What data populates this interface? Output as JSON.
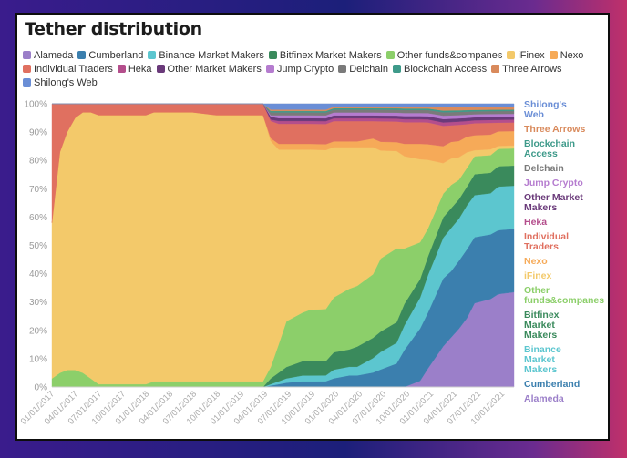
{
  "title": "Tether distribution",
  "chart_data": {
    "type": "area",
    "stacked": true,
    "normalized": true,
    "title": "Tether distribution",
    "ylim": [
      0,
      100
    ],
    "y_tick_labels": [
      "0%",
      "10%",
      "20%",
      "30%",
      "40%",
      "50%",
      "60%",
      "70%",
      "80%",
      "90%",
      "100%"
    ],
    "x_tick_labels": [
      "01/01/2017",
      "04/01/2017",
      "07/01/2017",
      "10/01/2017",
      "01/01/2018",
      "04/01/2018",
      "07/01/2018",
      "10/01/2018",
      "01/01/2019",
      "04/01/2019",
      "07/01/2019",
      "10/01/2019",
      "01/01/2020",
      "04/01/2020",
      "07/01/2020",
      "10/01/2020",
      "01/01/2021",
      "04/01/2021",
      "07/01/2021",
      "10/01/2021"
    ],
    "x_dates": [
      "2017-01-01",
      "2017-02-01",
      "2017-03-01",
      "2017-04-01",
      "2017-05-01",
      "2017-06-01",
      "2017-07-01",
      "2017-10-01",
      "2018-01-01",
      "2018-02-01",
      "2018-04-01",
      "2018-07-01",
      "2018-10-01",
      "2019-01-01",
      "2019-03-01",
      "2019-04-01",
      "2019-05-01",
      "2019-06-01",
      "2019-07-01",
      "2019-09-01",
      "2019-10-01",
      "2019-12-01",
      "2020-01-01",
      "2020-03-01",
      "2020-04-01",
      "2020-06-01",
      "2020-07-01",
      "2020-09-01",
      "2020-10-01",
      "2020-12-01",
      "2021-01-01",
      "2021-03-01",
      "2021-04-01",
      "2021-05-01",
      "2021-06-01",
      "2021-07-01",
      "2021-09-01",
      "2021-10-01",
      "2021-12-01"
    ],
    "series": [
      {
        "name": "Alameda",
        "color": "#9b7fc9",
        "values": [
          0,
          0,
          0,
          0,
          0,
          0,
          0,
          0,
          0,
          0,
          0,
          0,
          0,
          0,
          0,
          0,
          0,
          0,
          0,
          0,
          0,
          0,
          0,
          0,
          0,
          0,
          0,
          0,
          0,
          2,
          6,
          12,
          15,
          18,
          22,
          28,
          30,
          32,
          33
        ]
      },
      {
        "name": "Cumberland",
        "color": "#3b7fae",
        "values": [
          0,
          0,
          0,
          0,
          0,
          0,
          0,
          0,
          0,
          0,
          0,
          0,
          0,
          0,
          0,
          0,
          0.5,
          1,
          1.5,
          2,
          2,
          2,
          3,
          4,
          4,
          5,
          6,
          8,
          12,
          17,
          18,
          20,
          20,
          21,
          22,
          22,
          22,
          22,
          22
        ]
      },
      {
        "name": "Binance Market Makers",
        "color": "#5cc6cf",
        "values": [
          0,
          0,
          0,
          0,
          0,
          0,
          0,
          0,
          0,
          0,
          0,
          0,
          0,
          0,
          0,
          0,
          0.5,
          1,
          1.5,
          2,
          2,
          2,
          3,
          3,
          3,
          5,
          6,
          7,
          8,
          10,
          12,
          12,
          13,
          13,
          14,
          14,
          14,
          15,
          15
        ]
      },
      {
        "name": "Bitfinex Market Makers",
        "color": "#3a8a5c",
        "values": [
          0,
          0,
          0,
          0,
          0,
          0,
          0,
          0,
          0,
          0,
          0,
          0,
          0,
          0,
          0,
          0,
          2,
          3,
          4,
          5,
          5,
          5,
          6,
          6,
          7,
          7,
          7,
          7,
          7,
          6,
          6,
          6,
          6,
          6,
          6,
          7,
          7,
          7,
          7
        ]
      },
      {
        "name": "Other funds&companes",
        "color": "#8ccf6a",
        "values": [
          3,
          5,
          6,
          6,
          5,
          3,
          1,
          1,
          1,
          2,
          2,
          2,
          2,
          2,
          2,
          2,
          4,
          10,
          16,
          17,
          18,
          18,
          19,
          21,
          21,
          22,
          25,
          25,
          18,
          12,
          9,
          7,
          7,
          6,
          6,
          6,
          6,
          6,
          6
        ]
      },
      {
        "name": "iFinex",
        "color": "#f3c96a",
        "values": [
          55,
          78,
          84,
          89,
          92,
          94,
          95,
          95,
          95,
          95,
          95,
          95,
          94,
          94,
          94,
          94,
          79,
          68,
          60,
          57,
          56,
          55,
          52,
          49,
          48,
          44,
          37,
          33,
          30,
          27,
          22,
          9,
          8,
          7,
          5,
          2,
          2,
          1,
          1
        ]
      },
      {
        "name": "Nexo",
        "color": "#f6aa58",
        "values": [
          0,
          0,
          0,
          0,
          0,
          0,
          0,
          0,
          0,
          0,
          0,
          0,
          0,
          0,
          0,
          0,
          1,
          2,
          2,
          2,
          2,
          2,
          2,
          2,
          2,
          3,
          3,
          3,
          4,
          5,
          5,
          5,
          5,
          5,
          5,
          5,
          5,
          5,
          5
        ]
      },
      {
        "name": "Individual Traders",
        "color": "#e07060",
        "values": [
          42,
          17,
          10,
          5,
          3,
          3,
          4,
          4,
          4,
          3,
          3,
          3,
          4,
          4,
          4,
          4,
          6,
          7,
          7,
          7,
          7,
          7,
          7,
          7,
          7,
          6,
          7,
          7,
          7,
          7,
          7,
          6,
          5,
          5,
          4,
          4,
          4,
          3,
          3
        ]
      },
      {
        "name": "Heka",
        "color": "#b44e8c",
        "values": [
          0,
          0,
          0,
          0,
          0,
          0,
          0,
          0,
          0,
          0,
          0,
          0,
          0,
          0,
          0,
          0,
          0.5,
          1,
          1,
          1,
          1,
          1,
          1,
          1,
          1,
          1,
          1,
          1,
          1,
          1,
          1,
          1,
          1,
          1,
          1,
          1,
          1,
          1,
          1
        ]
      },
      {
        "name": "Other Market Makers",
        "color": "#6a3a7a",
        "values": [
          0,
          0,
          0,
          0,
          0,
          0,
          0,
          0,
          0,
          0,
          0,
          0,
          0,
          0,
          0,
          0,
          1,
          1,
          1,
          1,
          1,
          1,
          1,
          1,
          1,
          1,
          1,
          1,
          1,
          1,
          1,
          1,
          1,
          1,
          1,
          1,
          1,
          1,
          1
        ]
      },
      {
        "name": "Jump Crypto",
        "color": "#b57ccf",
        "values": [
          0,
          0,
          0,
          0,
          0,
          0,
          0,
          0,
          0,
          0,
          0,
          0,
          0,
          0,
          0,
          0,
          0.5,
          1,
          1,
          1,
          1,
          1,
          1,
          1,
          1,
          1,
          1,
          1,
          1,
          1,
          1,
          1,
          1,
          1,
          1,
          1,
          1,
          1,
          1
        ]
      },
      {
        "name": "Delchain",
        "color": "#7a7a7a",
        "values": [
          0,
          0,
          0,
          0,
          0,
          0,
          0,
          0,
          0,
          0,
          0,
          0,
          0,
          0,
          0,
          0,
          1,
          1,
          1,
          1,
          1,
          1,
          1,
          1,
          1,
          1,
          1,
          1,
          1,
          1,
          1,
          1,
          1,
          1,
          1,
          1,
          1,
          1,
          1
        ]
      },
      {
        "name": "Blockchain Access",
        "color": "#3e9a8a",
        "values": [
          0,
          0,
          0,
          0,
          0,
          0,
          0,
          0,
          0,
          0,
          0,
          0,
          0,
          0,
          0,
          0,
          0.5,
          0.5,
          0.5,
          0.5,
          0.5,
          0.5,
          0.5,
          0.5,
          0.5,
          0.5,
          0.5,
          0.5,
          0.5,
          0.5,
          0.5,
          0.5,
          0.5,
          0.5,
          0.5,
          0.5,
          0.5,
          0.5,
          0.5
        ]
      },
      {
        "name": "Three Arrows",
        "color": "#d98a5c",
        "values": [
          0,
          0,
          0,
          0,
          0,
          0,
          0,
          0,
          0,
          0,
          0,
          0,
          0,
          0,
          0,
          0,
          0.5,
          0.5,
          0.5,
          0.5,
          0.5,
          0.5,
          0.5,
          0.5,
          0.5,
          0.5,
          0.5,
          0.5,
          0.5,
          0.5,
          0.5,
          1,
          1,
          1,
          1,
          1,
          1,
          1,
          1
        ]
      },
      {
        "name": "Shilong's Web",
        "color": "#6a8ed6",
        "values": [
          0,
          0,
          0,
          0,
          0,
          0,
          0,
          0,
          0,
          0,
          0,
          0,
          0,
          0,
          0,
          0,
          2,
          2,
          2,
          2,
          2,
          2,
          1,
          1,
          1,
          1,
          1,
          1,
          1,
          1,
          1,
          1,
          1,
          1,
          1,
          1,
          1,
          1,
          1
        ]
      }
    ],
    "right_labels": [
      {
        "text": "Shilong's Web",
        "series": "Shilong's Web"
      },
      {
        "text": "Three Arrows",
        "series": "Three Arrows"
      },
      {
        "text": "Blockchain Access",
        "series": "Blockchain Access"
      },
      {
        "text": "Delchain",
        "series": "Delchain"
      },
      {
        "text": "Jump Crypto",
        "series": "Jump Crypto"
      },
      {
        "text": "Other Market Makers",
        "series": "Other Market Makers"
      },
      {
        "text": "Heka",
        "series": "Heka"
      },
      {
        "text": "Individual Traders",
        "series": "Individual Traders"
      },
      {
        "text": "Nexo",
        "series": "Nexo"
      },
      {
        "text": "iFinex",
        "series": "iFinex"
      },
      {
        "text": "Other funds&companes",
        "series": "Other funds&companes"
      },
      {
        "text": "Bitfinex Market Makers",
        "series": "Bitfinex Market Makers"
      },
      {
        "text": "Binance Market Makers",
        "series": "Binance Market Makers"
      },
      {
        "text": "Cumberland",
        "series": "Cumberland"
      },
      {
        "text": "Alameda",
        "series": "Alameda"
      }
    ],
    "legend_position": "top-left",
    "grid": "horizontal"
  }
}
